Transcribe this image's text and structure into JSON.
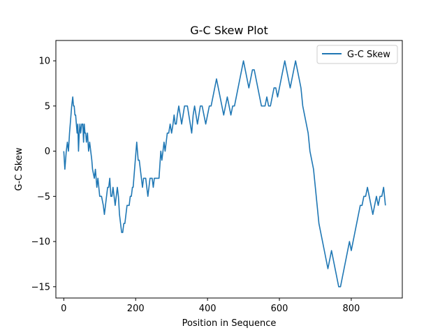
{
  "chart_data": {
    "type": "line",
    "title": "G-C Skew Plot",
    "xlabel": "Position in Sequence",
    "ylabel": "G-C Skew",
    "xlim": [
      -22,
      942
    ],
    "ylim": [
      -16.25,
      12.25
    ],
    "xticks": [
      0,
      200,
      400,
      600,
      800
    ],
    "yticks": [
      -15,
      -10,
      -5,
      0,
      5,
      10
    ],
    "grid": false,
    "legend_position": "top-right",
    "series": [
      {
        "name": "G-C Skew",
        "color": "#1f77b4",
        "points": [
          [
            0,
            0
          ],
          [
            3,
            -2
          ],
          [
            5,
            -1
          ],
          [
            7,
            0
          ],
          [
            10,
            1
          ],
          [
            13,
            0
          ],
          [
            16,
            2
          ],
          [
            18,
            3
          ],
          [
            20,
            4
          ],
          [
            22,
            5
          ],
          [
            25,
            6
          ],
          [
            27,
            5
          ],
          [
            29,
            5
          ],
          [
            31,
            4
          ],
          [
            33,
            4
          ],
          [
            35,
            3
          ],
          [
            37,
            2
          ],
          [
            39,
            3
          ],
          [
            41,
            0
          ],
          [
            43,
            2
          ],
          [
            45,
            3
          ],
          [
            47,
            2
          ],
          [
            50,
            3
          ],
          [
            53,
            3
          ],
          [
            55,
            1
          ],
          [
            57,
            3
          ],
          [
            59,
            2
          ],
          [
            61,
            2
          ],
          [
            63,
            1
          ],
          [
            66,
            2
          ],
          [
            69,
            0
          ],
          [
            72,
            1
          ],
          [
            75,
            0
          ],
          [
            78,
            -1
          ],
          [
            80,
            -2
          ],
          [
            85,
            -3
          ],
          [
            88,
            -2
          ],
          [
            92,
            -4
          ],
          [
            95,
            -3
          ],
          [
            100,
            -5
          ],
          [
            105,
            -5
          ],
          [
            110,
            -6
          ],
          [
            113,
            -7
          ],
          [
            116,
            -6
          ],
          [
            119,
            -5
          ],
          [
            122,
            -4
          ],
          [
            125,
            -4
          ],
          [
            128,
            -3
          ],
          [
            131,
            -5
          ],
          [
            134,
            -5
          ],
          [
            137,
            -4
          ],
          [
            140,
            -5
          ],
          [
            143,
            -6
          ],
          [
            146,
            -5
          ],
          [
            149,
            -4
          ],
          [
            152,
            -5
          ],
          [
            155,
            -7
          ],
          [
            158,
            -8
          ],
          [
            161,
            -9
          ],
          [
            164,
            -9
          ],
          [
            167,
            -8
          ],
          [
            170,
            -8
          ],
          [
            173,
            -7
          ],
          [
            176,
            -6
          ],
          [
            179,
            -6
          ],
          [
            182,
            -6
          ],
          [
            185,
            -5
          ],
          [
            188,
            -5
          ],
          [
            191,
            -4
          ],
          [
            193,
            -4
          ],
          [
            195,
            -3
          ],
          [
            197,
            -2
          ],
          [
            199,
            -1
          ],
          [
            201,
            0
          ],
          [
            203,
            1
          ],
          [
            205,
            0
          ],
          [
            207,
            -1
          ],
          [
            210,
            -1
          ],
          [
            213,
            -2
          ],
          [
            216,
            -3
          ],
          [
            219,
            -4
          ],
          [
            222,
            -3
          ],
          [
            225,
            -3
          ],
          [
            228,
            -3
          ],
          [
            231,
            -4
          ],
          [
            234,
            -5
          ],
          [
            237,
            -4
          ],
          [
            240,
            -3
          ],
          [
            243,
            -3
          ],
          [
            246,
            -3
          ],
          [
            249,
            -4
          ],
          [
            252,
            -3
          ],
          [
            255,
            -3
          ],
          [
            260,
            -3
          ],
          [
            265,
            -3
          ],
          [
            270,
            0
          ],
          [
            273,
            -1
          ],
          [
            276,
            0
          ],
          [
            279,
            1
          ],
          [
            282,
            0
          ],
          [
            285,
            1
          ],
          [
            288,
            2
          ],
          [
            292,
            2
          ],
          [
            296,
            3
          ],
          [
            300,
            2
          ],
          [
            304,
            3
          ],
          [
            307,
            4
          ],
          [
            310,
            3
          ],
          [
            313,
            3
          ],
          [
            316,
            4
          ],
          [
            320,
            5
          ],
          [
            324,
            4
          ],
          [
            328,
            3
          ],
          [
            332,
            4
          ],
          [
            336,
            5
          ],
          [
            340,
            5
          ],
          [
            344,
            5
          ],
          [
            348,
            4
          ],
          [
            352,
            3
          ],
          [
            356,
            2
          ],
          [
            360,
            4
          ],
          [
            364,
            5
          ],
          [
            368,
            4
          ],
          [
            372,
            3
          ],
          [
            376,
            4
          ],
          [
            380,
            5
          ],
          [
            385,
            5
          ],
          [
            390,
            4
          ],
          [
            395,
            3
          ],
          [
            400,
            4
          ],
          [
            405,
            5
          ],
          [
            410,
            5
          ],
          [
            415,
            6
          ],
          [
            420,
            7
          ],
          [
            425,
            8
          ],
          [
            430,
            7
          ],
          [
            435,
            6
          ],
          [
            440,
            5
          ],
          [
            445,
            4
          ],
          [
            450,
            5
          ],
          [
            455,
            6
          ],
          [
            460,
            5
          ],
          [
            465,
            4
          ],
          [
            470,
            5
          ],
          [
            475,
            5
          ],
          [
            480,
            6
          ],
          [
            485,
            7
          ],
          [
            490,
            8
          ],
          [
            495,
            9
          ],
          [
            500,
            10
          ],
          [
            505,
            9
          ],
          [
            510,
            8
          ],
          [
            515,
            7
          ],
          [
            520,
            8
          ],
          [
            525,
            9
          ],
          [
            530,
            9
          ],
          [
            535,
            8
          ],
          [
            540,
            7
          ],
          [
            545,
            6
          ],
          [
            550,
            5
          ],
          [
            555,
            5
          ],
          [
            560,
            5
          ],
          [
            565,
            6
          ],
          [
            570,
            5
          ],
          [
            575,
            5
          ],
          [
            580,
            6
          ],
          [
            585,
            7
          ],
          [
            590,
            7
          ],
          [
            595,
            6
          ],
          [
            600,
            7
          ],
          [
            605,
            8
          ],
          [
            610,
            9
          ],
          [
            615,
            10
          ],
          [
            620,
            9
          ],
          [
            625,
            8
          ],
          [
            630,
            7
          ],
          [
            635,
            8
          ],
          [
            640,
            9
          ],
          [
            645,
            10
          ],
          [
            650,
            9
          ],
          [
            655,
            8
          ],
          [
            660,
            7
          ],
          [
            665,
            5
          ],
          [
            670,
            4
          ],
          [
            675,
            3
          ],
          [
            680,
            2
          ],
          [
            685,
            0
          ],
          [
            690,
            -1
          ],
          [
            695,
            -2
          ],
          [
            700,
            -4
          ],
          [
            705,
            -6
          ],
          [
            710,
            -8
          ],
          [
            715,
            -9
          ],
          [
            720,
            -10
          ],
          [
            725,
            -11
          ],
          [
            730,
            -12
          ],
          [
            735,
            -13
          ],
          [
            740,
            -12
          ],
          [
            745,
            -11
          ],
          [
            750,
            -12
          ],
          [
            755,
            -13
          ],
          [
            760,
            -14
          ],
          [
            765,
            -15
          ],
          [
            770,
            -15
          ],
          [
            775,
            -14
          ],
          [
            780,
            -13
          ],
          [
            785,
            -12
          ],
          [
            790,
            -11
          ],
          [
            795,
            -10
          ],
          [
            800,
            -11
          ],
          [
            805,
            -10
          ],
          [
            810,
            -9
          ],
          [
            815,
            -8
          ],
          [
            820,
            -7
          ],
          [
            825,
            -6
          ],
          [
            830,
            -6
          ],
          [
            835,
            -5
          ],
          [
            840,
            -5
          ],
          [
            845,
            -4
          ],
          [
            850,
            -5
          ],
          [
            855,
            -6
          ],
          [
            860,
            -7
          ],
          [
            865,
            -6
          ],
          [
            870,
            -5
          ],
          [
            875,
            -6
          ],
          [
            880,
            -5
          ],
          [
            885,
            -5
          ],
          [
            890,
            -4
          ],
          [
            895,
            -6
          ]
        ]
      }
    ]
  }
}
